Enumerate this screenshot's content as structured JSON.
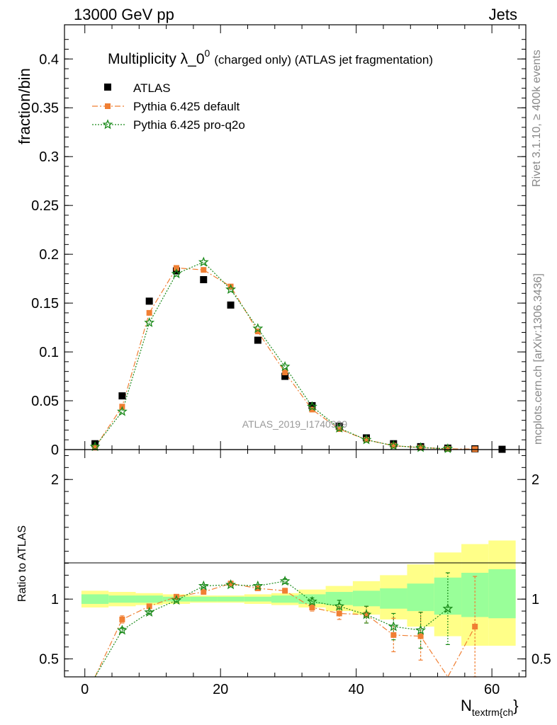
{
  "header": {
    "left": "13000 GeV pp",
    "right": "Jets"
  },
  "title": {
    "main": "Multiplicity λ_0",
    "superscript": "0",
    "sub": "(charged only) (ATLAS jet fragmentation)"
  },
  "side_text": {
    "rivet": "Rivet 3.1.10, ≥ 400k events",
    "mcplots": "mcplots.cern.ch [arXiv:1306.3436]"
  },
  "watermark": "ATLAS_2019_I1740909",
  "chart_data": [
    {
      "type": "scatter",
      "panel": "main",
      "ylabel": "fraction/bin",
      "xlim": [
        -3,
        65
      ],
      "ylim": [
        0,
        0.435
      ],
      "yticks": [
        0,
        0.05,
        0.1,
        0.15,
        0.2,
        0.25,
        0.3,
        0.35,
        0.4
      ],
      "ytick_labels": [
        "0",
        "0.05",
        "0.1",
        "0.15",
        "0.2",
        "0.25",
        "0.3",
        "0.35",
        "0.4"
      ],
      "legend_position": "top-left",
      "series": [
        {
          "name": "ATLAS",
          "style": "black-square",
          "color": "#000000",
          "x": [
            1.5,
            5.5,
            9.5,
            13.5,
            17.5,
            21.5,
            25.5,
            29.5,
            33.5,
            37.5,
            41.5,
            45.5,
            49.5,
            53.5,
            57.5,
            61.5
          ],
          "y": [
            0.006,
            0.055,
            0.152,
            0.183,
            0.174,
            0.148,
            0.112,
            0.075,
            0.045,
            0.024,
            0.012,
            0.006,
            0.003,
            0.0015,
            0.0008,
            0.0003
          ]
        },
        {
          "name": "Pythia 6.425 default",
          "style": "orange-dashdot-square",
          "color": "#f07f33",
          "x": [
            1.5,
            5.5,
            9.5,
            13.5,
            17.5,
            21.5,
            25.5,
            29.5,
            33.5,
            37.5,
            41.5,
            45.5,
            49.5,
            53.5,
            57.5
          ],
          "y": [
            0.002,
            0.044,
            0.14,
            0.186,
            0.184,
            0.167,
            0.121,
            0.079,
            0.041,
            0.021,
            0.01,
            0.004,
            0.002,
            0.0008,
            0.0005
          ]
        },
        {
          "name": "Pythia 6.425 pro-q2o",
          "style": "green-dotted-star",
          "color": "#1a8a1a",
          "x": [
            1.5,
            5.5,
            9.5,
            13.5,
            17.5,
            21.5,
            25.5,
            29.5,
            33.5,
            37.5,
            41.5,
            45.5,
            49.5,
            53.5
          ],
          "y": [
            0.003,
            0.039,
            0.13,
            0.18,
            0.192,
            0.164,
            0.124,
            0.085,
            0.044,
            0.022,
            0.01,
            0.004,
            0.002,
            0.0009
          ]
        }
      ]
    },
    {
      "type": "line",
      "panel": "ratio",
      "ylabel": "Ratio to ATLAS",
      "xlabel": "N",
      "xlabel_sub": "textrm{ch",
      "xlabel_suffix": "}",
      "xlim": [
        -3,
        65
      ],
      "ylim": [
        0.35,
        2.25
      ],
      "yticks": [
        0.5,
        1,
        2
      ],
      "ytick_labels": [
        "0.5",
        "1",
        "2"
      ],
      "xticks": [
        0,
        20,
        40,
        60
      ],
      "xtick_labels": [
        "0",
        "20",
        "40",
        "60"
      ],
      "bands": {
        "edges": [
          -0.5,
          3.5,
          7.5,
          11.5,
          15.5,
          19.5,
          23.5,
          27.5,
          31.5,
          35.5,
          39.5,
          43.5,
          47.5,
          51.5,
          55.5,
          59.5,
          63.5
        ],
        "green_lo": [
          0.96,
          0.97,
          0.97,
          0.98,
          0.98,
          0.98,
          0.98,
          0.97,
          0.96,
          0.95,
          0.94,
          0.92,
          0.9,
          0.87,
          0.85,
          0.84
        ],
        "green_hi": [
          1.04,
          1.03,
          1.03,
          1.02,
          1.02,
          1.02,
          1.02,
          1.03,
          1.04,
          1.06,
          1.07,
          1.09,
          1.13,
          1.18,
          1.22,
          1.25
        ],
        "yellow_lo": [
          0.93,
          0.94,
          0.95,
          0.96,
          0.97,
          0.97,
          0.96,
          0.95,
          0.93,
          0.9,
          0.87,
          0.83,
          0.77,
          0.69,
          0.61,
          0.61
        ],
        "yellow_hi": [
          1.07,
          1.06,
          1.05,
          1.04,
          1.03,
          1.03,
          1.04,
          1.05,
          1.08,
          1.11,
          1.15,
          1.2,
          1.29,
          1.39,
          1.46,
          1.49
        ],
        "green_color": "#99ff99",
        "yellow_color": "#ffff88"
      },
      "series": [
        {
          "name": "Pythia 6.425 default",
          "color": "#f07f33",
          "x": [
            1.5,
            5.5,
            9.5,
            13.5,
            17.5,
            21.5,
            25.5,
            29.5,
            33.5,
            37.5,
            41.5,
            45.5,
            49.5,
            53.5,
            57.5
          ],
          "y": [
            0.3,
            0.83,
            0.94,
            1.02,
            1.06,
            1.13,
            1.09,
            1.07,
            0.93,
            0.88,
            0.87,
            0.7,
            0.69,
            0.3,
            0.77
          ],
          "err": [
            0,
            0.03,
            0.01,
            0.01,
            0.01,
            0.01,
            0.01,
            0.02,
            0.03,
            0.05,
            0.07,
            0.14,
            0.2,
            0,
            0.42
          ]
        },
        {
          "name": "Pythia 6.425 pro-q2o",
          "color": "#1a8a1a",
          "x": [
            1.5,
            5.5,
            9.5,
            13.5,
            17.5,
            21.5,
            25.5,
            29.5,
            33.5,
            37.5,
            41.5,
            45.5,
            49.5,
            53.5
          ],
          "y": [
            0.3,
            0.74,
            0.89,
            0.99,
            1.11,
            1.12,
            1.11,
            1.15,
            0.98,
            0.94,
            0.87,
            0.77,
            0.74,
            0.92
          ],
          "err": [
            0,
            0.02,
            0.01,
            0.01,
            0.01,
            0.01,
            0.01,
            0.02,
            0.03,
            0.05,
            0.07,
            0.11,
            0.15,
            0.3
          ]
        }
      ]
    }
  ]
}
